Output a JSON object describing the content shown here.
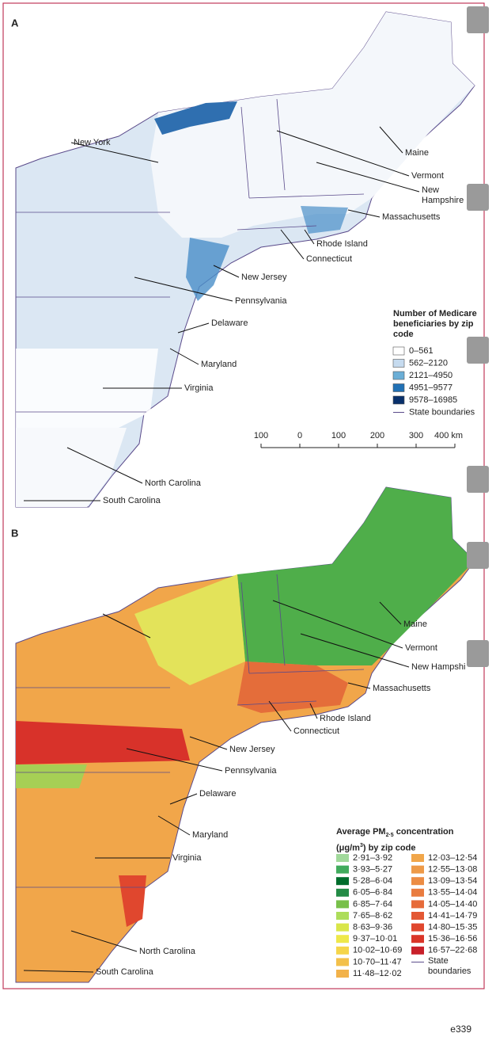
{
  "panel_a": {
    "letter": "A",
    "state_labels": [
      "New York",
      "Maine",
      "Vermont",
      "New Hampshire",
      "Massachusetts",
      "Rhode Island",
      "Connecticut",
      "New Jersey",
      "Pennsylvania",
      "Delaware",
      "Maryland",
      "Virginia",
      "North Carolina",
      "South Carolina"
    ],
    "legend": {
      "title": "Number of Medicare beneficiaries by zip code",
      "items": [
        {
          "label": "0–561",
          "color": "#ffffff"
        },
        {
          "label": "562–2120",
          "color": "#c6dbef"
        },
        {
          "label": "2121–4950",
          "color": "#6baed6"
        },
        {
          "label": "4951–9577",
          "color": "#2171b5"
        },
        {
          "label": "9578–16985",
          "color": "#08306b"
        }
      ],
      "boundary_label": "State boundaries"
    },
    "scale_bar": {
      "ticks": [
        {
          "value": -100,
          "label": "100"
        },
        0,
        100,
        200,
        300,
        {
          "value": 400,
          "label": "400 km"
        }
      ]
    }
  },
  "panel_b": {
    "letter": "B",
    "state_labels": [
      "Maine",
      "Vermont",
      "New Hampshi",
      "Massachusetts",
      "Rhode Island",
      "Connecticut",
      "New Jersey",
      "Pennsylvania",
      "Delaware",
      "Maryland",
      "Virginia",
      "North Carolina",
      "South Carolina"
    ],
    "legend": {
      "title_parts": [
        "Average PM",
        "2·5",
        " concentration",
        "(μg/m",
        "3",
        ") by zip code"
      ],
      "items": [
        {
          "label": "2·91–3·92",
          "color": "#a1d99b"
        },
        {
          "label": "3·93–5·27",
          "color": "#41ab5d"
        },
        {
          "label": "5·28–6·04",
          "color": "#006d2c"
        },
        {
          "label": "6·05–6·84",
          "color": "#238b45"
        },
        {
          "label": "6·85–7·64",
          "color": "#78c04a"
        },
        {
          "label": "7·65–8·62",
          "color": "#addd5a"
        },
        {
          "label": "8·63–9·36",
          "color": "#d9e64a"
        },
        {
          "label": "9·37–10·01",
          "color": "#eee84a"
        },
        {
          "label": "10·02–10·69",
          "color": "#f5d54a"
        },
        {
          "label": "10·70–11·47",
          "color": "#f3c04a"
        },
        {
          "label": "11·48–12·02",
          "color": "#f2b24a"
        },
        {
          "label": "12·03–12·54",
          "color": "#f1a64a"
        },
        {
          "label": "12·55–13·08",
          "color": "#ee9a48"
        },
        {
          "label": "13·09–13·54",
          "color": "#ec8c44"
        },
        {
          "label": "13·55–14·04",
          "color": "#e97c40"
        },
        {
          "label": "14·05–14·40",
          "color": "#e66b3a"
        },
        {
          "label": "14·41–14·79",
          "color": "#e35834"
        },
        {
          "label": "14·80–15·35",
          "color": "#e0472e"
        },
        {
          "label": "15·36–16·56",
          "color": "#da3528"
        },
        {
          "label": "16·57–22·68",
          "color": "#c8202a"
        }
      ],
      "boundary_label": "State boundaries"
    }
  },
  "page_number": "e339"
}
